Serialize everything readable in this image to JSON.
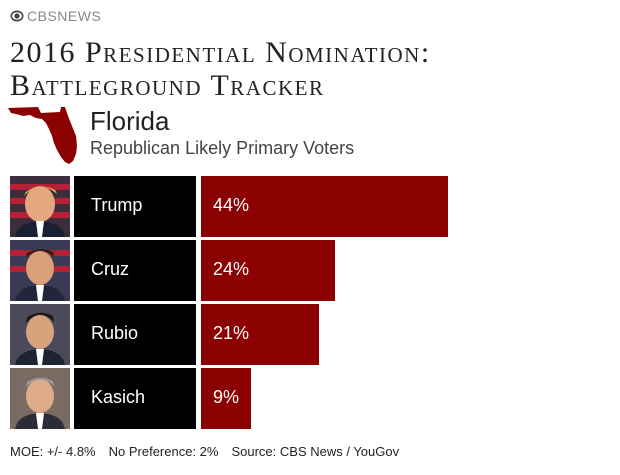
{
  "brand": {
    "name": "CBSNEWS",
    "icon": "cbs-eye-icon"
  },
  "title": {
    "line1": "2016 Presidential Nomination:",
    "line2": "Battleground Tracker"
  },
  "state": {
    "name": "Florida",
    "icon": "florida-map-icon"
  },
  "subtitle": "Republican Likely Primary Voters",
  "colors": {
    "bar": "#8b0000",
    "name_box": "#000000",
    "map": "#8b0000"
  },
  "chart_data": {
    "type": "bar",
    "orientation": "horizontal",
    "title": "2016 Presidential Nomination: Battleground Tracker",
    "subtitle": "Republican Likely Primary Voters",
    "categories": [
      "Trump",
      "Cruz",
      "Rubio",
      "Kasich"
    ],
    "values": [
      44,
      24,
      21,
      9
    ],
    "value_labels": [
      "44%",
      "24%",
      "21%",
      "9%"
    ],
    "unit": "%",
    "xlim": [
      0,
      73
    ],
    "grid": false,
    "legend": "none"
  },
  "footer": {
    "moe": "MOE: +/- 4.8%",
    "no_preference": "No Preference: 2%",
    "source": "Source: CBS News / YouGov"
  }
}
